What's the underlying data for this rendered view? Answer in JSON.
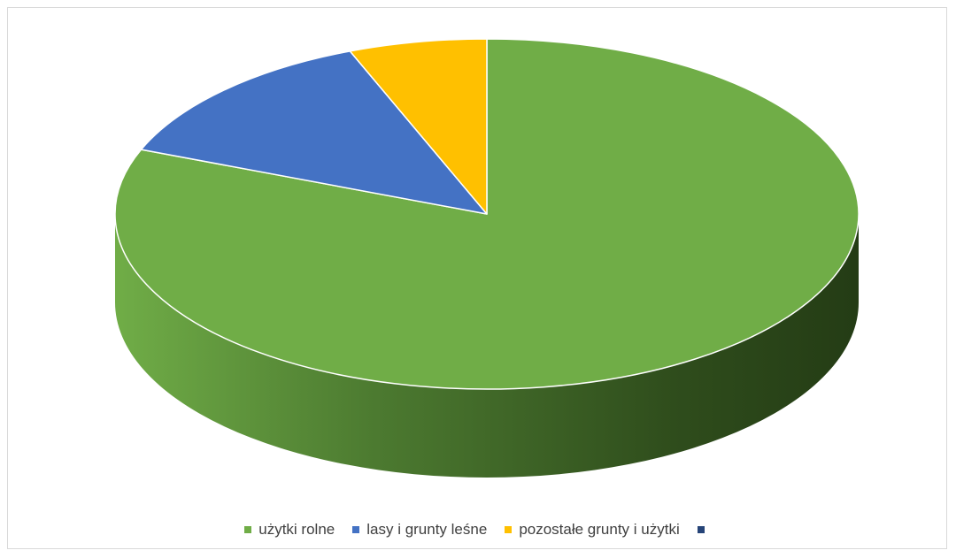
{
  "chart_data": {
    "type": "pie",
    "style": "3d",
    "title": "",
    "categories": [
      "użytki rolne",
      "lasy i grunty leśne",
      "pozostałe grunty i użytki",
      ""
    ],
    "values": [
      81,
      13,
      6,
      0
    ],
    "colors": [
      "#70ad47",
      "#4472c4",
      "#ffc000",
      "#264478"
    ],
    "legend_position": "bottom"
  }
}
